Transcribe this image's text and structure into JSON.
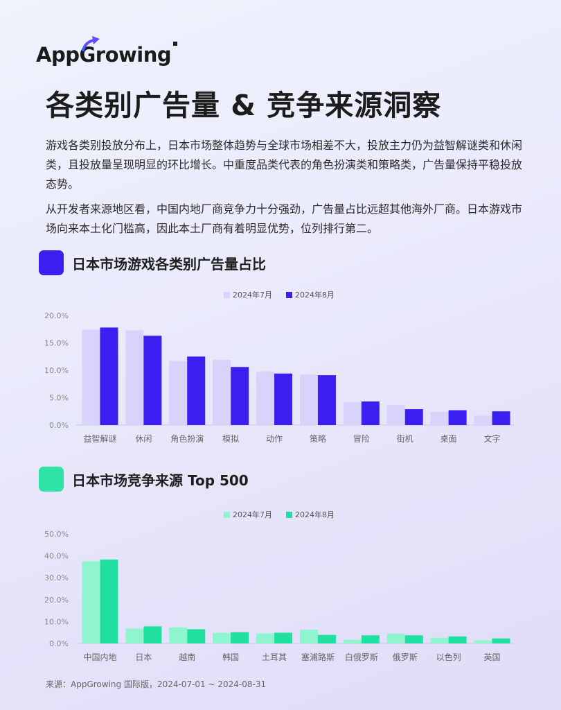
{
  "logo": {
    "text": "AppGrowing"
  },
  "title": "各类别广告量 & 竞争来源洞察",
  "paragraphs": {
    "p1": "游戏各类别投放分布上，日本市场整体趋势与全球市场相差不大，投放主力仍为益智解谜类和休闲类，且投放量呈现明显的环比增长。中重度品类代表的角色扮演类和策略类，广告量保持平稳投放态势。",
    "p2": "从开发者来源地区看，中国内地厂商竞争力十分强劲，广告量占比远超其他海外厂商。日本游戏市场向来本土化门槛高，因此本土厂商有着明显优势，位列排行第二。"
  },
  "sections": {
    "s1": {
      "title": "日本市场游戏各类别广告量占比",
      "accent": "#3a1ff0"
    },
    "s2": {
      "title": "日本市场竞争来源 Top 500",
      "accent": "#2fe3a6"
    }
  },
  "source": "来源：AppGrowing 国际版，2024-07-01 ~ 2024-08-31",
  "chart_data": [
    {
      "type": "bar",
      "title": "日本市场游戏各类别广告量占比",
      "categories": [
        "益智解谜",
        "休闲",
        "角色扮演",
        "模拟",
        "动作",
        "策略",
        "冒险",
        "街机",
        "桌面",
        "文字"
      ],
      "series": [
        {
          "name": "2024年7月",
          "color": "#d9d2fb",
          "values": [
            17.4,
            17.3,
            11.7,
            11.9,
            9.8,
            9.2,
            4.2,
            3.7,
            2.4,
            1.7
          ]
        },
        {
          "name": "2024年8月",
          "color": "#3a1ff0",
          "values": [
            17.8,
            16.3,
            12.5,
            10.6,
            9.4,
            9.1,
            4.3,
            2.9,
            2.7,
            2.5
          ]
        }
      ],
      "y_ticks": [
        "0.0%",
        "5.0%",
        "10.0%",
        "15.0%",
        "20.0%"
      ],
      "ylim": [
        0,
        20
      ],
      "legend_position": "top-center",
      "grid": false
    },
    {
      "type": "bar",
      "title": "日本市场竞争来源 Top 500",
      "categories": [
        "中国内地",
        "日本",
        "越南",
        "韩国",
        "土耳其",
        "塞浦路斯",
        "白俄罗斯",
        "俄罗斯",
        "以色列",
        "英国"
      ],
      "series": [
        {
          "name": "2024年7月",
          "color": "#8ff5cf",
          "values": [
            37.5,
            6.8,
            7.3,
            4.8,
            4.6,
            6.3,
            1.6,
            4.4,
            2.6,
            1.4
          ]
        },
        {
          "name": "2024年8月",
          "color": "#1fe0a0",
          "values": [
            38.3,
            7.8,
            6.5,
            5.1,
            4.9,
            3.9,
            3.7,
            3.7,
            3.2,
            2.3
          ]
        }
      ],
      "y_ticks": [
        "0.0%",
        "10.0%",
        "20.0%",
        "30.0%",
        "40.0%",
        "50.0%"
      ],
      "ylim": [
        0,
        50
      ],
      "legend_position": "top-center",
      "grid": false
    }
  ]
}
